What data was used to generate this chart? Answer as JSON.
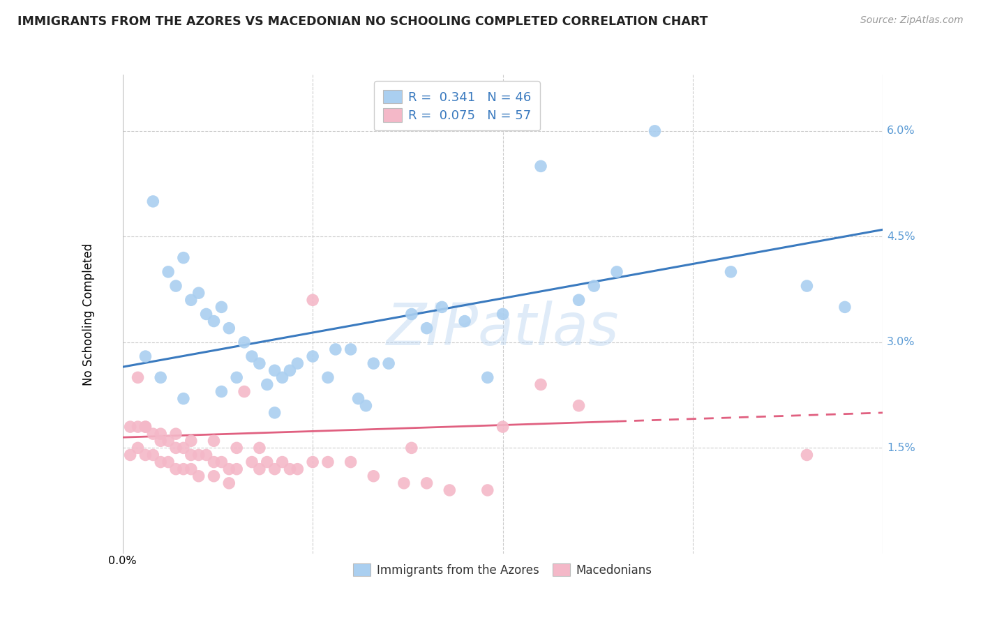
{
  "title": "IMMIGRANTS FROM THE AZORES VS MACEDONIAN NO SCHOOLING COMPLETED CORRELATION CHART",
  "source": "Source: ZipAtlas.com",
  "ylabel": "No Schooling Completed",
  "ytick_labels": [
    "1.5%",
    "3.0%",
    "4.5%",
    "6.0%"
  ],
  "ytick_values": [
    0.015,
    0.03,
    0.045,
    0.06
  ],
  "xlim": [
    0.0,
    0.1
  ],
  "ylim": [
    0.0,
    0.068
  ],
  "color_blue": "#aacff0",
  "color_pink": "#f4b8c8",
  "color_blue_line": "#3a7abf",
  "color_pink_line": "#e06080",
  "watermark": "ZIPatlas",
  "az_x": [
    0.004,
    0.006,
    0.007,
    0.008,
    0.009,
    0.01,
    0.011,
    0.012,
    0.013,
    0.014,
    0.015,
    0.016,
    0.017,
    0.018,
    0.019,
    0.02,
    0.021,
    0.022,
    0.023,
    0.025,
    0.027,
    0.028,
    0.03,
    0.031,
    0.033,
    0.035,
    0.038,
    0.04,
    0.042,
    0.045,
    0.05,
    0.055,
    0.062,
    0.065,
    0.07,
    0.08,
    0.09,
    0.095,
    0.003,
    0.005,
    0.008,
    0.013,
    0.02,
    0.032,
    0.048,
    0.06
  ],
  "az_y": [
    0.05,
    0.04,
    0.038,
    0.042,
    0.036,
    0.037,
    0.034,
    0.033,
    0.035,
    0.032,
    0.025,
    0.03,
    0.028,
    0.027,
    0.024,
    0.026,
    0.025,
    0.026,
    0.027,
    0.028,
    0.025,
    0.029,
    0.029,
    0.022,
    0.027,
    0.027,
    0.034,
    0.032,
    0.035,
    0.033,
    0.034,
    0.055,
    0.038,
    0.04,
    0.06,
    0.04,
    0.038,
    0.035,
    0.028,
    0.025,
    0.022,
    0.023,
    0.02,
    0.021,
    0.025,
    0.036
  ],
  "mac_x": [
    0.001,
    0.001,
    0.002,
    0.002,
    0.003,
    0.003,
    0.004,
    0.004,
    0.005,
    0.005,
    0.006,
    0.006,
    0.007,
    0.007,
    0.008,
    0.008,
    0.009,
    0.009,
    0.01,
    0.01,
    0.011,
    0.012,
    0.012,
    0.013,
    0.014,
    0.014,
    0.015,
    0.016,
    0.017,
    0.018,
    0.019,
    0.02,
    0.021,
    0.022,
    0.023,
    0.025,
    0.027,
    0.03,
    0.033,
    0.037,
    0.04,
    0.043,
    0.048,
    0.05,
    0.055,
    0.06,
    0.09,
    0.002,
    0.003,
    0.005,
    0.007,
    0.009,
    0.012,
    0.015,
    0.018,
    0.025,
    0.038
  ],
  "mac_y": [
    0.018,
    0.014,
    0.018,
    0.015,
    0.018,
    0.014,
    0.017,
    0.014,
    0.016,
    0.013,
    0.016,
    0.013,
    0.015,
    0.012,
    0.015,
    0.012,
    0.014,
    0.012,
    0.014,
    0.011,
    0.014,
    0.013,
    0.011,
    0.013,
    0.012,
    0.01,
    0.012,
    0.023,
    0.013,
    0.012,
    0.013,
    0.012,
    0.013,
    0.012,
    0.012,
    0.013,
    0.013,
    0.013,
    0.011,
    0.01,
    0.01,
    0.009,
    0.009,
    0.018,
    0.024,
    0.021,
    0.014,
    0.025,
    0.018,
    0.017,
    0.017,
    0.016,
    0.016,
    0.015,
    0.015,
    0.036,
    0.015
  ],
  "az_line_x0": 0.0,
  "az_line_y0": 0.0265,
  "az_line_x1": 0.1,
  "az_line_y1": 0.046,
  "mac_line_x0": 0.0,
  "mac_line_y0": 0.0165,
  "mac_line_x1": 0.1,
  "mac_line_y1": 0.02
}
